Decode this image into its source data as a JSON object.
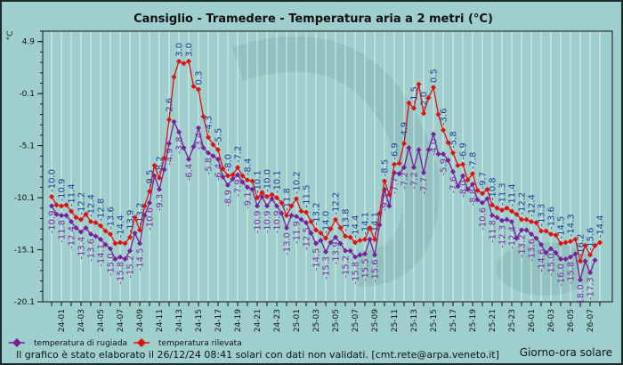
{
  "chart_data": {
    "type": "line",
    "title": "Cansiglio - Tramedere - Temperatura aria a 2 metri (°C)",
    "ylabel": "°C",
    "xlabel": "Giorno-ora solare",
    "ylim": [
      -20.1,
      5.9
    ],
    "yticks": [
      "4.9",
      "-0.1",
      "-5.1",
      "-10.1",
      "-15.1",
      "-20.1"
    ],
    "ytick_values": [
      4.9,
      -0.1,
      -5.1,
      -10.1,
      -15.1,
      -20.1
    ],
    "x_step_hours": 0.5,
    "x_start_label": "24-00",
    "xtick_labels": [
      "24-01",
      "24-03",
      "24-05",
      "24-07",
      "24-09",
      "24-11",
      "24-13",
      "24-15",
      "24-17",
      "24-19",
      "24-21",
      "24-23",
      "25-01",
      "25-03",
      "25-05",
      "25-07",
      "25-09",
      "25-11",
      "25-13",
      "25-15",
      "25-17",
      "25-19",
      "25-21",
      "25-23",
      "26-01",
      "26-03",
      "26-05",
      "26-07"
    ],
    "grid": "vertical, hourly",
    "legend_position": "bottom-left",
    "series": [
      {
        "name": "temperatura di rugiada",
        "color": "#7a1f9a",
        "label_color": "#7a2aa0",
        "values": [
          -10.9,
          -11.7,
          -11.8,
          -11.8,
          -12.4,
          -13.0,
          -13.4,
          -13.0,
          -13.6,
          -13.8,
          -14.1,
          -14.6,
          -15.0,
          -16.0,
          -15.8,
          -16.0,
          -15.2,
          -13.5,
          -14.5,
          -11.8,
          -10.6,
          -8.0,
          -9.3,
          -7.4,
          -4.9,
          -2.8,
          -3.8,
          -5.3,
          -6.4,
          -5.2,
          -3.4,
          -5.3,
          -5.8,
          -6.1,
          -6.4,
          -8.1,
          -8.9,
          -8.3,
          -7.9,
          -8.6,
          -9.1,
          -9.3,
          -10.9,
          -10.0,
          -10.9,
          -10.2,
          -10.9,
          -11.6,
          -13.0,
          -11.8,
          -11.9,
          -12.2,
          -12.5,
          -13.5,
          -14.5,
          -14.2,
          -15.3,
          -14.4,
          -13.9,
          -14.5,
          -15.2,
          -15.2,
          -15.8,
          -15.6,
          -15.5,
          -14.1,
          -15.6,
          -12.7,
          -9.3,
          -10.9,
          -7.7,
          -7.8,
          -7.2,
          -5.3,
          -7.2,
          -5.5,
          -7.7,
          -5.5,
          -4.0,
          -5.9,
          -5.9,
          -6.5,
          -7.6,
          -9.0,
          -8.0,
          -9.3,
          -8.8,
          -10.3,
          -10.6,
          -10.2,
          -11.8,
          -12.0,
          -12.3,
          -12.2,
          -12.4,
          -14.0,
          -13.2,
          -13.2,
          -13.6,
          -14.0,
          -14.6,
          -15.4,
          -15.0,
          -15.4,
          -16.0,
          -16.0,
          -15.8,
          -15.5,
          -18.0,
          -16.2,
          -17.3,
          -16.1,
          null
        ]
      },
      {
        "name": "temperatura rilevata",
        "color": "#e01010",
        "label_color": "#1d3c98",
        "values": [
          -10.0,
          -10.8,
          -10.9,
          -10.8,
          -11.4,
          -12.0,
          -12.2,
          -11.7,
          -12.4,
          -12.5,
          -12.8,
          -13.3,
          -13.6,
          -14.5,
          -14.4,
          -14.5,
          -13.9,
          -12.0,
          -13.2,
          -10.9,
          -9.5,
          -7.0,
          -8.2,
          -6.3,
          -2.6,
          1.5,
          3.0,
          2.8,
          3.0,
          0.6,
          0.3,
          -2.3,
          -4.3,
          -5.0,
          -5.5,
          -7.3,
          -8.0,
          -7.9,
          -7.2,
          -8.0,
          -8.4,
          -8.5,
          -10.1,
          -9.6,
          -10.0,
          -9.8,
          -10.1,
          -10.6,
          -11.8,
          -10.9,
          -10.2,
          -11.4,
          -11.5,
          -12.4,
          -13.2,
          -13.5,
          -14.0,
          -13.1,
          -12.2,
          -13.0,
          -13.8,
          -13.9,
          -14.4,
          -14.2,
          -14.1,
          -13.0,
          -14.1,
          -11.6,
          -8.5,
          -9.8,
          -6.9,
          -6.8,
          -4.9,
          -1.0,
          -1.5,
          0.8,
          -2.0,
          -0.5,
          0.5,
          -2.1,
          -3.6,
          -4.8,
          -5.8,
          -7.0,
          -6.9,
          -8.4,
          -7.8,
          -9.4,
          -9.7,
          -9.3,
          -10.8,
          -11.1,
          -11.3,
          -11.1,
          -11.4,
          -11.7,
          -12.2,
          -12.2,
          -12.4,
          -12.5,
          -13.3,
          -13.3,
          -13.6,
          -13.7,
          -14.5,
          -14.4,
          -14.3,
          -14.1,
          -16.2,
          -14.7,
          -15.6,
          -14.7,
          -14.4
        ]
      }
    ],
    "point_labels": "every hour (even points)"
  },
  "legend": {
    "dew": "temperatura di rugiada",
    "temp": "temperatura rilevata"
  },
  "footer": {
    "note": "Il grafico è stato elaborato il 26/12/24 08:41 solari con dati non validati. [cmt.rete@arpa.veneto.it]",
    "xaxis_title": "Giorno-ora solare"
  },
  "colors": {
    "background": "#9fcfcc",
    "grid": "#eef7f6"
  }
}
